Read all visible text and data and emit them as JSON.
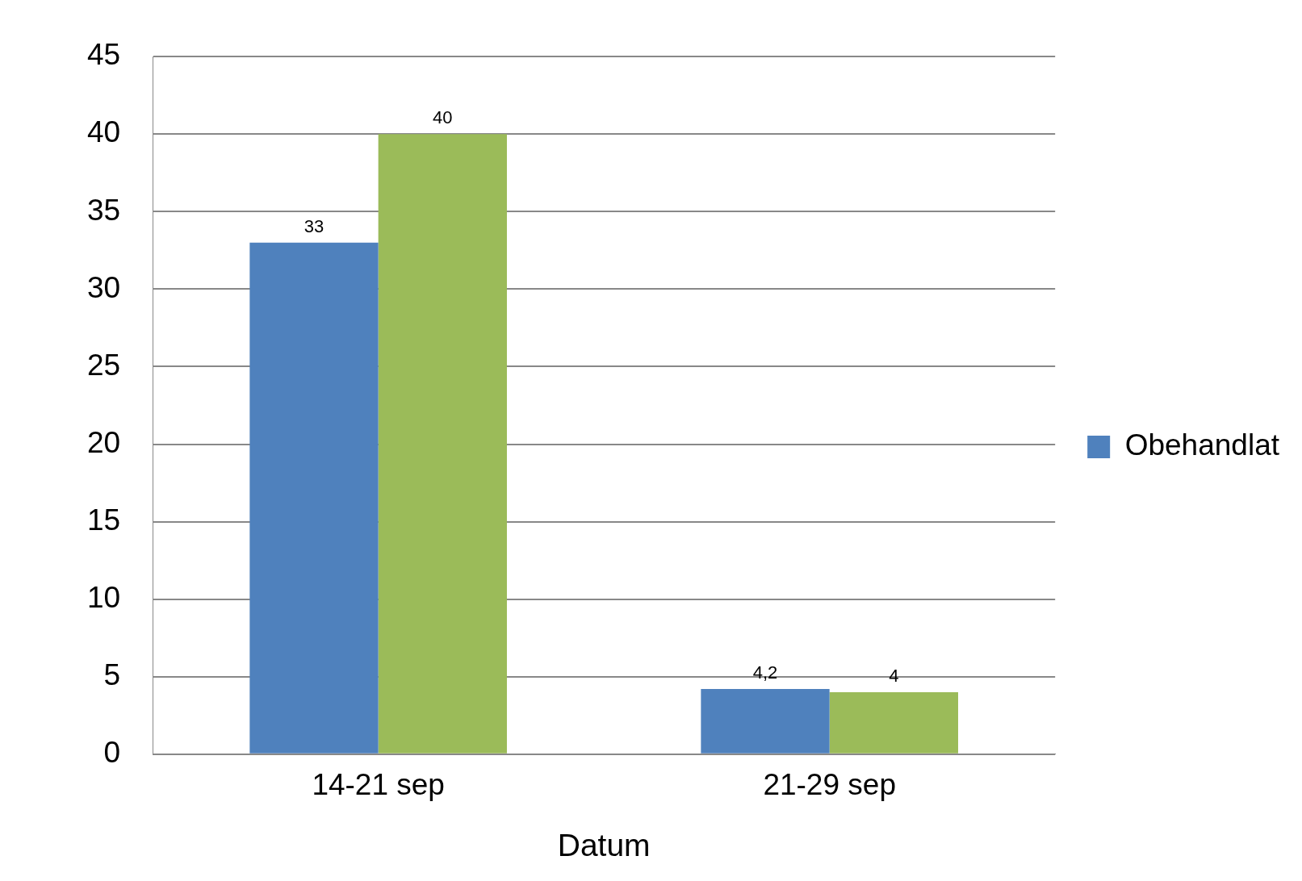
{
  "chart_data": {
    "type": "bar",
    "xlabel": "Datum",
    "categories": [
      "14-21 sep",
      "21-29 sep"
    ],
    "series": [
      {
        "name": "Obehandlat",
        "color": "#4f81bd",
        "values": [
          33,
          4.2
        ],
        "value_labels": [
          "33",
          "4,2"
        ]
      },
      {
        "color": "#9bbb59",
        "values": [
          40,
          4
        ],
        "value_labels": [
          "40",
          "4"
        ]
      }
    ],
    "ylim": [
      0,
      45
    ],
    "yticks": [
      0,
      5,
      10,
      15,
      20,
      25,
      30,
      35,
      40,
      45
    ],
    "grid": "y",
    "legend": "right"
  }
}
